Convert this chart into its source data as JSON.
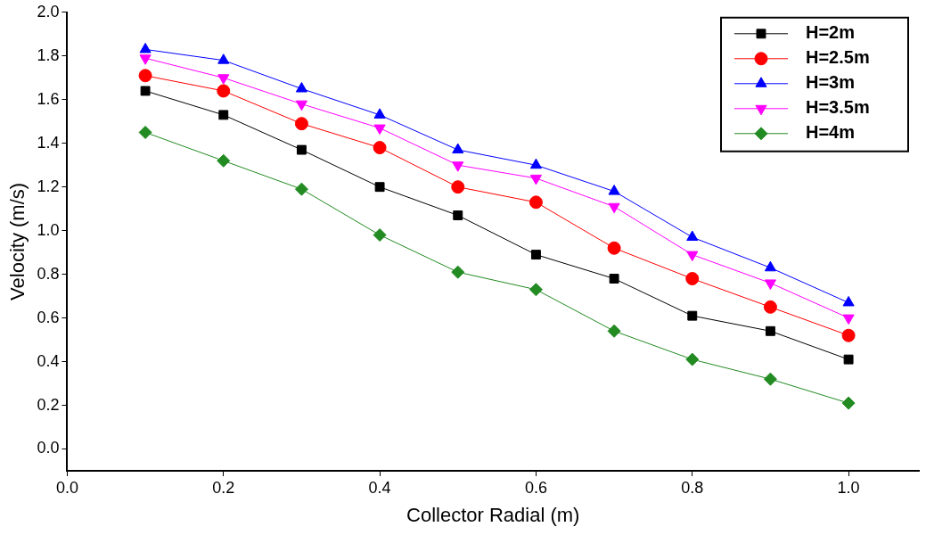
{
  "chart_data": {
    "type": "line",
    "xlabel": "Collector Radial (m)",
    "ylabel": "Velocity (m/s)",
    "x": [
      0.1,
      0.2,
      0.3,
      0.4,
      0.5,
      0.6,
      0.7,
      0.8,
      0.9,
      1.0
    ],
    "xlim": [
      0,
      1.09
    ],
    "xticks": [
      {
        "value": 0,
        "label": "0.0"
      },
      0.2,
      0.4,
      0.6,
      0.8,
      {
        "value": 1,
        "label": "1.0"
      }
    ],
    "ylim": [
      -0.1,
      2.0
    ],
    "yticks": [
      {
        "value": 0,
        "label": "0.0"
      },
      0.2,
      0.4,
      0.6,
      0.8,
      {
        "value": 1,
        "label": "1.0"
      },
      1.2,
      1.4,
      1.6,
      1.8,
      {
        "value": 2,
        "label": "2.0"
      }
    ],
    "grid": false,
    "legend": "top right",
    "line_style": "solid",
    "series": [
      {
        "name": "H=2m",
        "color": "#000000",
        "marker": "square",
        "values": [
          1.64,
          1.53,
          1.37,
          1.2,
          1.07,
          0.89,
          0.78,
          0.61,
          0.54,
          0.41
        ]
      },
      {
        "name": "H=2.5m",
        "color": "#ff0000",
        "marker": "circle",
        "values": [
          1.71,
          1.64,
          1.49,
          1.38,
          1.2,
          1.13,
          0.92,
          0.78,
          0.65,
          0.52
        ]
      },
      {
        "name": "H=3m",
        "color": "#0000ff",
        "marker": "triangle",
        "values": [
          1.83,
          1.78,
          1.65,
          1.53,
          1.37,
          1.3,
          1.18,
          0.97,
          0.83,
          0.67
        ]
      },
      {
        "name": "H=3.5m",
        "color": "#ff00ff",
        "marker": "triangle-down",
        "values": [
          1.79,
          1.7,
          1.58,
          1.47,
          1.3,
          1.24,
          1.11,
          0.89,
          0.76,
          0.6
        ]
      },
      {
        "name": "H=4m",
        "color": "#228b22",
        "marker": "diamond",
        "values": [
          1.45,
          1.32,
          1.19,
          0.98,
          0.81,
          0.73,
          0.54,
          0.41,
          0.32,
          0.21
        ]
      }
    ]
  }
}
